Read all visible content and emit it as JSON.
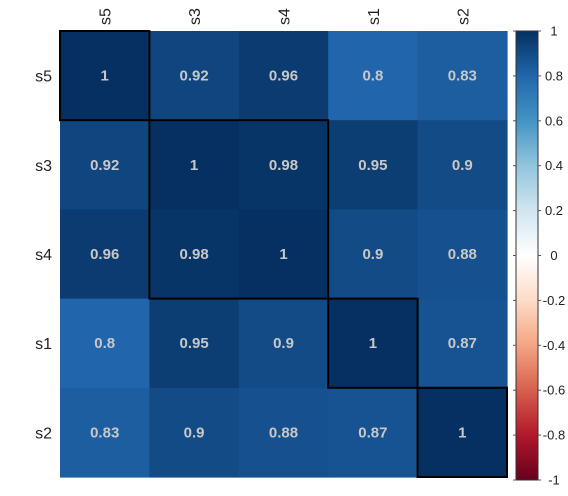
{
  "chart_data": {
    "type": "heatmap",
    "variables": [
      "s5",
      "s3",
      "s4",
      "s1",
      "s2"
    ],
    "matrix": [
      [
        1,
        0.92,
        0.96,
        0.8,
        0.83
      ],
      [
        0.92,
        1,
        0.98,
        0.95,
        0.9
      ],
      [
        0.96,
        0.98,
        1,
        0.9,
        0.88
      ],
      [
        0.8,
        0.95,
        0.9,
        1,
        0.87
      ],
      [
        0.83,
        0.9,
        0.88,
        0.87,
        1
      ]
    ],
    "clusters": [
      [
        "s5"
      ],
      [
        "s3",
        "s4"
      ],
      [
        "s1"
      ],
      [
        "s2"
      ]
    ],
    "value_range": [
      -1,
      1
    ],
    "colorbar_ticks": [
      "1",
      "0.8",
      "0.6",
      "0.4",
      "0.2",
      "0",
      "-0.2",
      "-0.4",
      "-0.6",
      "-0.8",
      "-1"
    ],
    "colormap": [
      "#67001F",
      "#B2182B",
      "#D6604D",
      "#F4A582",
      "#FDDBC7",
      "#FFFFFF",
      "#D1E5F0",
      "#92C5DE",
      "#4393C3",
      "#2166AC",
      "#053061"
    ],
    "label_color": "#c8c8c8",
    "legend": "right"
  }
}
